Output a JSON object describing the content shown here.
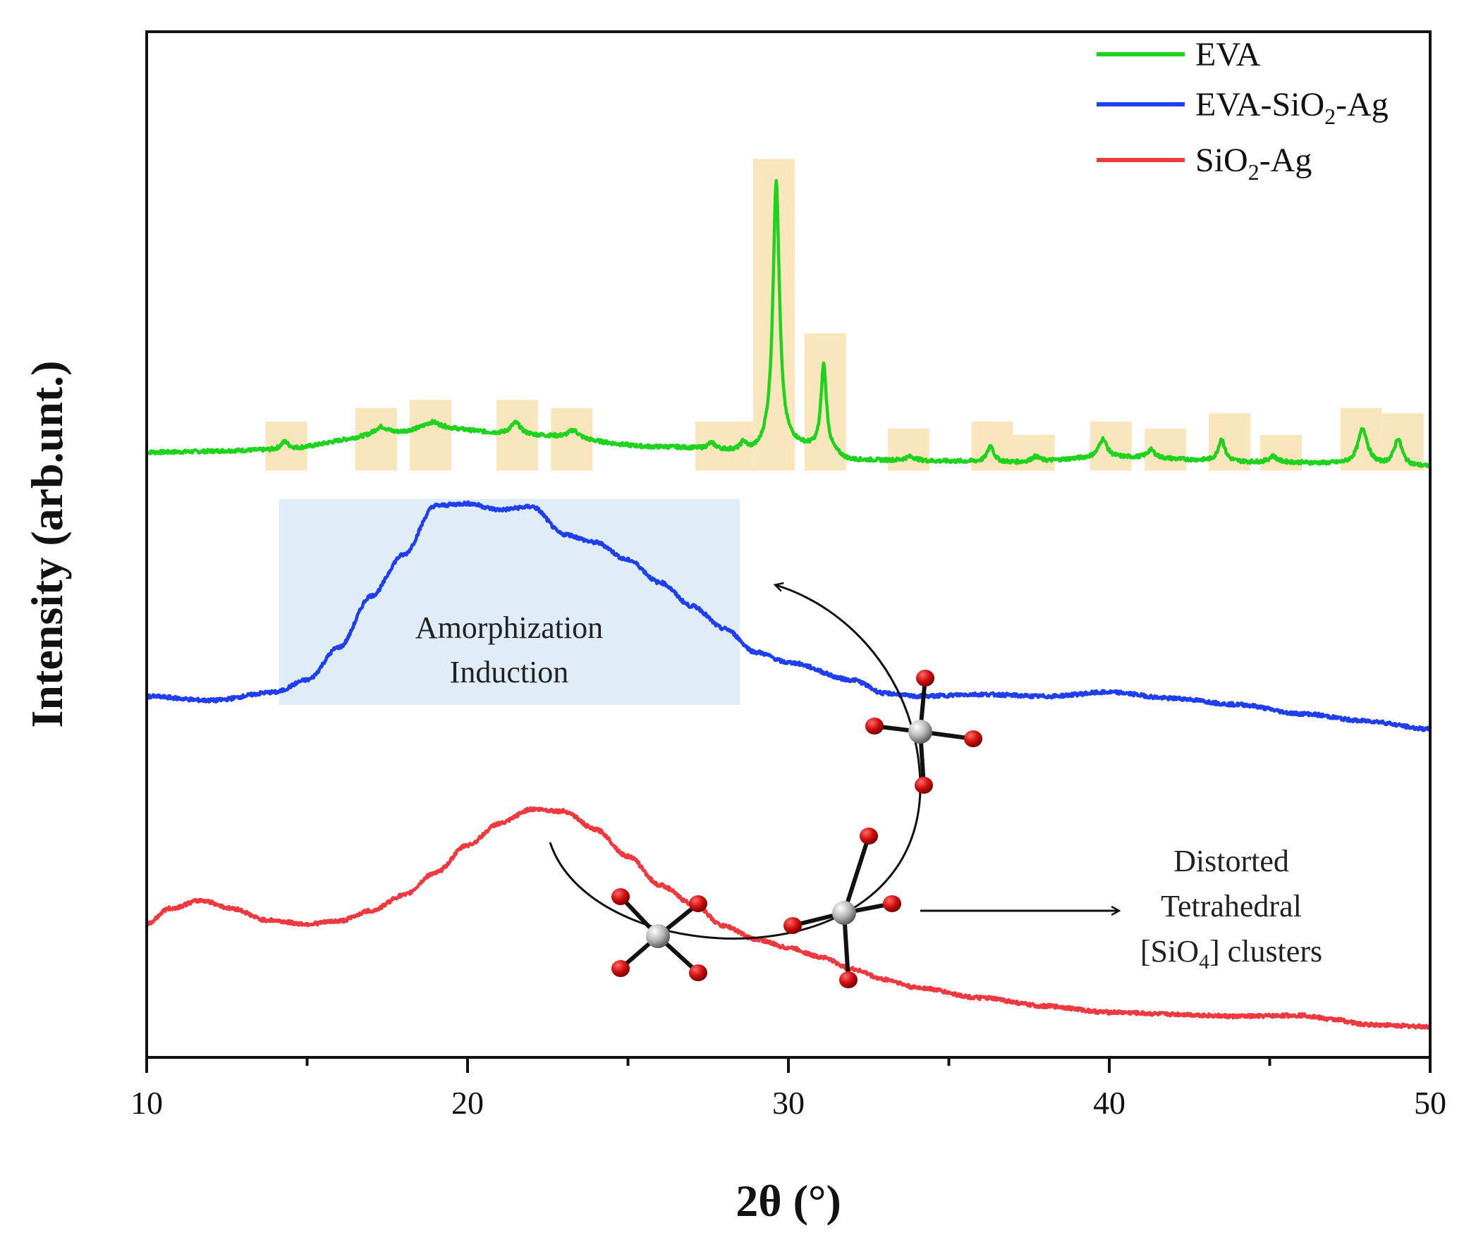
{
  "chart_data": {
    "type": "line",
    "title": "",
    "xlabel": "2θ (°)",
    "ylabel": "Intensity (arb.unt.)",
    "xlim": [
      10,
      50
    ],
    "ylim": [
      0,
      100
    ],
    "x_ticks": [
      "10",
      "20",
      "30",
      "40",
      "50"
    ],
    "legend_position": "top-right",
    "legend": [
      {
        "name": "EVA",
        "sub": "",
        "tail": "",
        "color": "#1ed31e"
      },
      {
        "name": "EVA-SiO",
        "sub": "2",
        "tail": "-Ag",
        "color": "#1f3ef0"
      },
      {
        "name": "SiO",
        "sub": "2",
        "tail": "-Ag",
        "color": "#f0383f"
      }
    ],
    "series": [
      {
        "name": "EVA",
        "color": "#1ed31e",
        "base": [
          [
            10,
            59
          ],
          [
            14,
            59.2
          ],
          [
            17,
            60.4
          ],
          [
            19,
            61.3
          ],
          [
            22,
            60.6
          ],
          [
            26,
            59.5
          ],
          [
            29,
            59
          ],
          [
            29.4,
            59.5
          ],
          [
            30,
            59.6
          ],
          [
            31,
            59.3
          ],
          [
            32,
            58.2
          ],
          [
            35,
            58.1
          ],
          [
            37,
            58
          ],
          [
            40,
            58.5
          ],
          [
            45,
            58
          ],
          [
            50,
            57.6
          ]
        ],
        "peaks": [
          [
            14.3,
            0.8,
            0.15
          ],
          [
            17.3,
            1.0,
            0.3
          ],
          [
            18.9,
            0.6,
            0.3
          ],
          [
            21.5,
            1.2,
            0.2
          ],
          [
            23.3,
            0.8,
            0.2
          ],
          [
            27.6,
            0.6,
            0.15
          ],
          [
            28.6,
            0.8,
            0.1
          ],
          [
            29.62,
            26,
            0.12
          ],
          [
            31.1,
            8.2,
            0.1
          ],
          [
            33.8,
            0.4,
            0.2
          ],
          [
            36.3,
            1.6,
            0.12
          ],
          [
            37.7,
            0.5,
            0.15
          ],
          [
            39.8,
            1.8,
            0.15
          ],
          [
            41.3,
            0.8,
            0.15
          ],
          [
            43.5,
            2.2,
            0.12
          ],
          [
            45.1,
            0.6,
            0.15
          ],
          [
            47.9,
            3.5,
            0.18
          ],
          [
            49,
            2.6,
            0.15
          ]
        ]
      },
      {
        "name": "EVA-SiO2-Ag",
        "color": "#1f3ef0",
        "base": [
          [
            10,
            35.2
          ],
          [
            12,
            34.8
          ],
          [
            14,
            35.6
          ],
          [
            15,
            36.8
          ],
          [
            16,
            40
          ],
          [
            17,
            45
          ],
          [
            18,
            49
          ],
          [
            19,
            53.8
          ],
          [
            20,
            54
          ],
          [
            21,
            53.4
          ],
          [
            22,
            53.7
          ],
          [
            23,
            51
          ],
          [
            24,
            50.2
          ],
          [
            25,
            48.5
          ],
          [
            26,
            46.3
          ],
          [
            27,
            44
          ],
          [
            28,
            41.8
          ],
          [
            29,
            39.5
          ],
          [
            30,
            38.5
          ],
          [
            32,
            36.8
          ],
          [
            33,
            35.5
          ],
          [
            34,
            35.2
          ],
          [
            36,
            35.4
          ],
          [
            38,
            35.2
          ],
          [
            40,
            35.6
          ],
          [
            42,
            35
          ],
          [
            44,
            34.4
          ],
          [
            46,
            33.5
          ],
          [
            48,
            32.8
          ],
          [
            50,
            32
          ]
        ]
      },
      {
        "name": "SiO2-Ag",
        "color": "#f0383f",
        "base": [
          [
            10,
            13
          ],
          [
            10.7,
            14.5
          ],
          [
            11.7,
            15.3
          ],
          [
            12.7,
            14.5
          ],
          [
            13.7,
            13.4
          ],
          [
            15,
            13
          ],
          [
            16,
            13.3
          ],
          [
            17,
            14.3
          ],
          [
            18,
            15.8
          ],
          [
            19,
            18
          ],
          [
            20,
            20.7
          ],
          [
            21,
            22.8
          ],
          [
            22,
            24.2
          ],
          [
            23,
            24
          ],
          [
            24,
            22.2
          ],
          [
            25,
            19.6
          ],
          [
            26,
            16.8
          ],
          [
            27,
            15
          ],
          [
            28,
            12.8
          ],
          [
            29,
            11.5
          ],
          [
            30,
            10.7
          ],
          [
            31,
            9.8
          ],
          [
            32,
            8.6
          ],
          [
            33,
            7.6
          ],
          [
            34,
            6.8
          ],
          [
            36,
            5.8
          ],
          [
            38,
            5
          ],
          [
            40,
            4.4
          ],
          [
            42,
            4.2
          ],
          [
            44,
            4
          ],
          [
            46,
            4.1
          ],
          [
            47,
            3.7
          ],
          [
            48,
            3.2
          ],
          [
            50,
            3
          ]
        ]
      }
    ],
    "highlight_peaks_x": [
      [
        13.7,
        15
      ],
      [
        16.5,
        17.8
      ],
      [
        18.2,
        19.5
      ],
      [
        20.9,
        22.2
      ],
      [
        22.6,
        23.9
      ],
      [
        27.1,
        28.9
      ],
      [
        28.9,
        30.2
      ],
      [
        30.5,
        31.8
      ],
      [
        33.1,
        34.4
      ],
      [
        35.7,
        37
      ],
      [
        37,
        38.3
      ],
      [
        39.4,
        40.7
      ],
      [
        41.1,
        42.4
      ],
      [
        43.1,
        44.4
      ],
      [
        44.7,
        46
      ],
      [
        47.2,
        48.5
      ],
      [
        48.5,
        49.8
      ]
    ],
    "highlight_peaks_top": [
      62,
      63.3,
      64.1,
      64.1,
      63.3,
      62,
      87.6,
      70.6,
      61.3,
      62,
      60.7,
      62,
      61.3,
      62.8,
      60.7,
      63.3,
      62.8
    ],
    "annotations": {
      "amorphization_line1": "Amorphization",
      "amorphization_line2": "Induction",
      "distorted_line1": "Distorted",
      "distorted_line2": "Tetrahedral",
      "distorted_line3_pre": "[SiO",
      "distorted_line3_sub": "4",
      "distorted_line3_post": "] clusters"
    }
  }
}
